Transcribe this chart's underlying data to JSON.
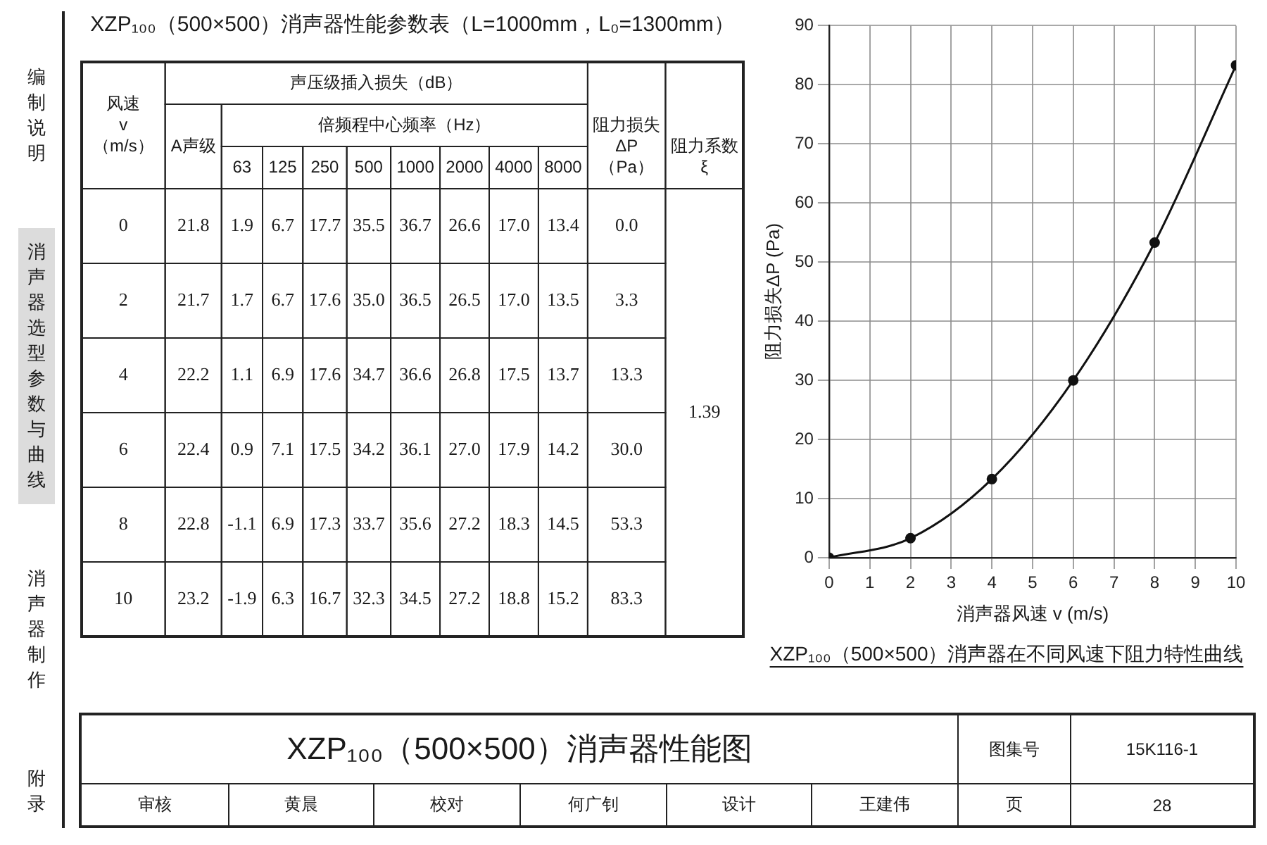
{
  "chart_data": [
    {
      "type": "heatmap",
      "title": "XZP₁₀₀（500×500）消声器性能参数表（L=1000mm，L₀=1300mm）",
      "ylabel": "风速 v （m/s）",
      "annotations": [
        "声压级插入损失（dB）",
        "倍频程中心频率（Hz）",
        "1.39"
      ],
      "categories": [
        "A声级",
        "63",
        "125",
        "250",
        "500",
        "1000",
        "2000",
        "4000",
        "8000",
        "阻力损失 ΔP （Pa）",
        "阻力系数 ξ"
      ],
      "y_categories": [
        "0",
        "2",
        "4",
        "6",
        "8",
        "10"
      ],
      "cells": [
        [
          21.8,
          1.9,
          6.7,
          17.7,
          35.5,
          36.7,
          26.6,
          17.0,
          13.4,
          0.0,
          null
        ],
        [
          21.7,
          1.7,
          6.7,
          17.6,
          35.0,
          36.5,
          26.5,
          17.0,
          13.5,
          3.3,
          null
        ],
        [
          22.2,
          1.1,
          6.9,
          17.6,
          34.7,
          36.6,
          26.8,
          17.5,
          13.7,
          13.3,
          null
        ],
        [
          22.4,
          0.9,
          7.1,
          17.5,
          34.2,
          36.1,
          27.0,
          17.9,
          14.2,
          30.0,
          null
        ],
        [
          22.8,
          -1.1,
          6.9,
          17.3,
          33.7,
          35.6,
          27.2,
          18.3,
          14.5,
          53.3,
          null
        ],
        [
          23.2,
          -1.9,
          6.3,
          16.7,
          32.3,
          34.5,
          27.2,
          18.8,
          15.2,
          83.3,
          null
        ]
      ],
      "cell_labels": [
        [
          "21.8",
          "1.9",
          "6.7",
          "17.7",
          "35.5",
          "36.7",
          "26.6",
          "17.0",
          "13.4",
          "0.0",
          null
        ],
        [
          "21.7",
          "1.7",
          "6.7",
          "17.6",
          "35.0",
          "36.5",
          "26.5",
          "17.0",
          "13.5",
          "3.3",
          null
        ],
        [
          "22.2",
          "1.1",
          "6.9",
          "17.6",
          "34.7",
          "36.6",
          "26.8",
          "17.5",
          "13.7",
          "13.3",
          null
        ],
        [
          "22.4",
          "0.9",
          "7.1",
          "17.5",
          "34.2",
          "36.1",
          "27.0",
          "17.9",
          "14.2",
          "30.0",
          null
        ],
        [
          "22.8",
          "-1.1",
          "6.9",
          "17.3",
          "33.7",
          "35.6",
          "27.2",
          "18.3",
          "14.5",
          "53.3",
          null
        ],
        [
          "23.2",
          "-1.9",
          "6.3",
          "16.7",
          "32.3",
          "34.5",
          "27.2",
          "18.8",
          "15.2",
          "83.3",
          null
        ]
      ]
    },
    {
      "type": "line",
      "title": "XZP₁₀₀（500×500）消声器在不同风速下阻力特性曲线",
      "xlabel": "消声器风速 v (m/s)",
      "ylabel": "阻力损失ΔP (Pa)",
      "x": [
        0,
        2,
        4,
        6,
        8,
        10
      ],
      "values": [
        0,
        3.3,
        13.3,
        30,
        53.3,
        83.3
      ],
      "color": "#111111",
      "xlim": [
        0,
        10
      ],
      "xticks": [
        0,
        1,
        2,
        3,
        4,
        5,
        6,
        7,
        8,
        9,
        10
      ],
      "ylim": [
        0,
        90
      ],
      "yticks": [
        0,
        10,
        20,
        30,
        40,
        50,
        60,
        70,
        80,
        90
      ],
      "grid": true,
      "marker": "circle",
      "line_style": "solid"
    },
    {
      "type": "other",
      "title": "XZP₁₀₀（500×500）消声器性能图",
      "annotations": [
        "图集号",
        "15K116-1",
        "页",
        "28",
        "审核",
        "黄晨",
        "校对",
        "何广钊",
        "设计",
        "王建伟"
      ]
    },
    {
      "type": "other",
      "annotations": [
        "编制说明",
        "消声器选型参数与曲线",
        "消声器制作",
        "附录"
      ]
    }
  ]
}
